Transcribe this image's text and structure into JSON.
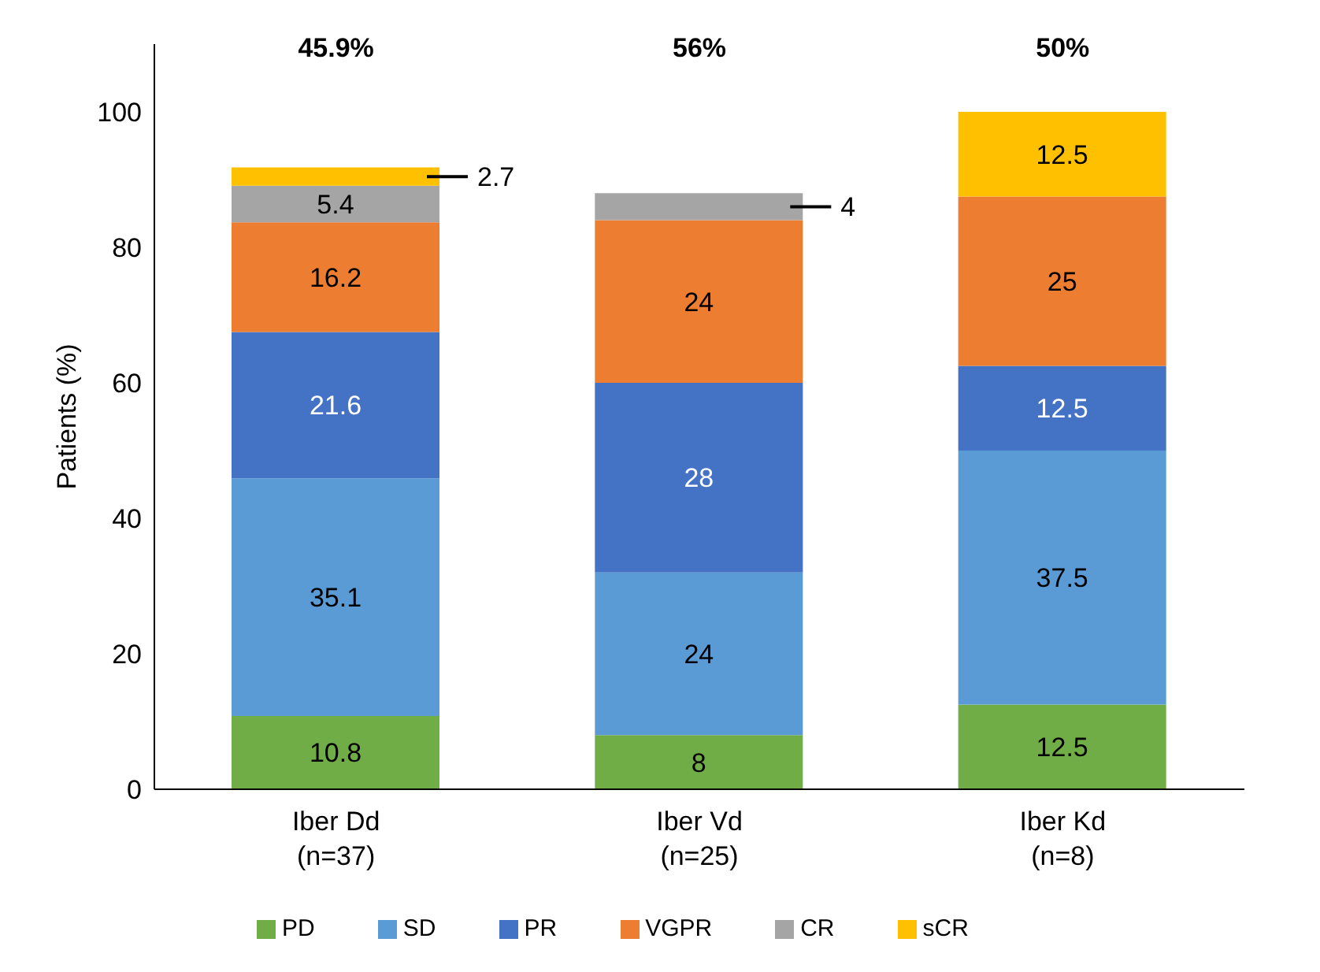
{
  "chart_data": {
    "type": "bar",
    "stacked": true,
    "ylabel": "Patients (%)",
    "categories": [
      "Iber Dd (n=37)",
      "Iber Vd (n=25)",
      "Iber Kd (n=8)"
    ],
    "series": [
      {
        "name": "PD",
        "color": "#70ad47",
        "values": [
          10.8,
          8,
          12.5
        ],
        "value_labels": [
          "10.8",
          "8",
          "12.5"
        ]
      },
      {
        "name": "SD",
        "color": "#5b9bd5",
        "values": [
          35.1,
          24,
          37.5
        ],
        "value_labels": [
          "35.1",
          "24",
          "37.5"
        ]
      },
      {
        "name": "PR",
        "color": "#4472c4",
        "values": [
          21.6,
          28,
          12.5
        ],
        "value_labels": [
          "21.6",
          "28",
          "12.5"
        ]
      },
      {
        "name": "VGPR",
        "color": "#ed7d31",
        "values": [
          16.2,
          24,
          25
        ],
        "value_labels": [
          "16.2",
          "24",
          "25"
        ]
      },
      {
        "name": "CR",
        "color": "#a5a5a5",
        "values": [
          5.4,
          4,
          null
        ],
        "value_labels": [
          "5.4",
          "4",
          null
        ]
      },
      {
        "name": "sCR",
        "color": "#ffc000",
        "values": [
          2.7,
          null,
          12.5
        ],
        "value_labels": [
          "2.7",
          null,
          "12.5"
        ]
      }
    ],
    "annotations": [
      "45.9%",
      "56%",
      "50%"
    ],
    "ylim": [
      0,
      110
    ],
    "yticks": [
      0,
      20,
      40,
      60,
      80,
      100
    ],
    "grid": false,
    "legend": "bottom"
  }
}
